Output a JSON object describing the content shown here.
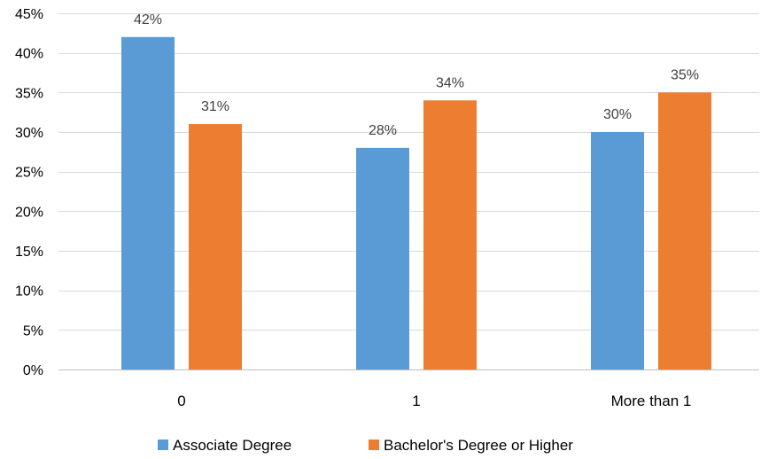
{
  "chart_data": {
    "type": "bar",
    "categories": [
      "0",
      "1",
      "More than 1"
    ],
    "series": [
      {
        "name": "Associate Degree",
        "values": [
          42,
          28,
          30
        ],
        "labels": [
          "42%",
          "28%",
          "30%"
        ],
        "color": "#5b9bd5"
      },
      {
        "name": "Bachelor's Degree or Higher",
        "values": [
          31,
          34,
          35
        ],
        "labels": [
          "31%",
          "34%",
          "35%"
        ],
        "color": "#ed7d31"
      }
    ],
    "ylim": [
      0,
      45
    ],
    "yticks": [
      0,
      5,
      10,
      15,
      20,
      25,
      30,
      35,
      40,
      45
    ],
    "ytick_labels": [
      "0%",
      "5%",
      "10%",
      "15%",
      "20%",
      "25%",
      "30%",
      "35%",
      "40%",
      "45%"
    ],
    "grid": true,
    "legend": "bottom",
    "xlabel": "",
    "ylabel": "",
    "title": ""
  }
}
